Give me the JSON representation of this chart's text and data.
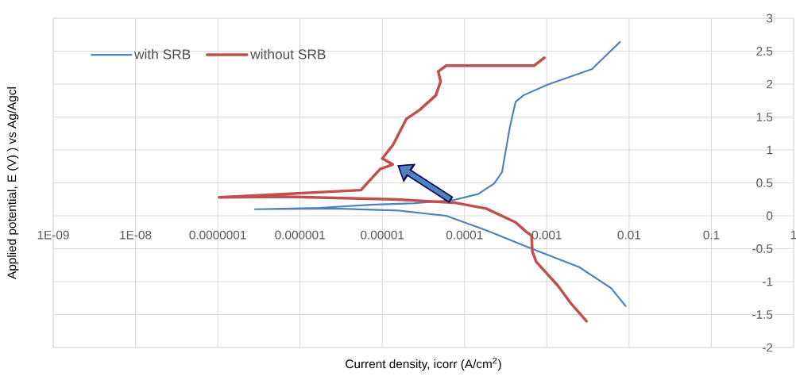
{
  "chart_data": {
    "type": "line",
    "xlabel": "Current density, icorr (A/cm$^{2}$)",
    "ylabel": "Applied potential, E (V) ) vs Ag/Agcl",
    "log": "x",
    "xlim": [
      1e-09,
      1
    ],
    "ylim": [
      -2,
      3
    ],
    "xticks": [
      {
        "value": 1e-09,
        "label": "1E-09"
      },
      {
        "value": 1e-08,
        "label": "1E-08"
      },
      {
        "value": 1e-07,
        "label": "0.0000001"
      },
      {
        "value": 1e-06,
        "label": "0.000001"
      },
      {
        "value": 1e-05,
        "label": "0.00001"
      },
      {
        "value": 0.0001,
        "label": "0.0001"
      },
      {
        "value": 0.001,
        "label": "0.001"
      },
      {
        "value": 0.01,
        "label": "0.01"
      },
      {
        "value": 0.1,
        "label": "0.1"
      },
      {
        "value": 1,
        "label": "1"
      }
    ],
    "yticks": [
      -2,
      -1.5,
      -1,
      -0.5,
      0,
      0.5,
      1,
      1.5,
      2,
      2.5,
      3
    ],
    "grid": true,
    "legend": "top left",
    "marker": "none",
    "series": [
      {
        "name": "with SRB",
        "color": "#4f81bd",
        "x": [
          0.00906,
          0.00607,
          0.00248,
          0.000596,
          0.000183,
          5.98e-05,
          1.57e-05,
          2.64e-06,
          2.83e-07,
          1.69e-06,
          8.04e-06,
          2.45e-05,
          7.48e-05,
          0.000146,
          0.000229,
          0.000285,
          0.000305,
          0.000356,
          0.000417,
          0.000521,
          0.00102,
          0.00355,
          0.00776
        ],
        "values": [
          -1.37,
          -1.1,
          -0.78,
          -0.48,
          -0.22,
          0,
          0.08,
          0.11,
          0.1,
          0.12,
          0.17,
          0.19,
          0.24,
          0.33,
          0.49,
          0.66,
          0.87,
          1.35,
          1.73,
          1.83,
          1.99,
          2.23,
          2.64
        ]
      },
      {
        "name": "without SRB",
        "color": "#c0504d",
        "x": [
          0.00304,
          0.00199,
          0.00136,
          0.000745,
          0.000667,
          0.000652,
          0.000557,
          0.000417,
          0.000183,
          7.48e-05,
          1.34e-05,
          6.9e-07,
          1.04e-07,
          5.5e-06,
          9.4e-06,
          1.34e-05,
          1e-05,
          1.34e-05,
          1.96e-05,
          2.86e-05,
          4.48e-05,
          5.12e-05,
          4.79e-05,
          5.98e-05,
          0.000697,
          0.000931
        ],
        "values": [
          -1.6,
          -1.34,
          -1.06,
          -0.7,
          -0.54,
          -0.3,
          -0.24,
          -0.1,
          0.11,
          0.2,
          0.25,
          0.29,
          0.28,
          0.39,
          0.71,
          0.78,
          0.87,
          1.07,
          1.47,
          1.61,
          1.83,
          2.04,
          2.19,
          2.28,
          2.28,
          2.4
        ]
      }
    ]
  }
}
